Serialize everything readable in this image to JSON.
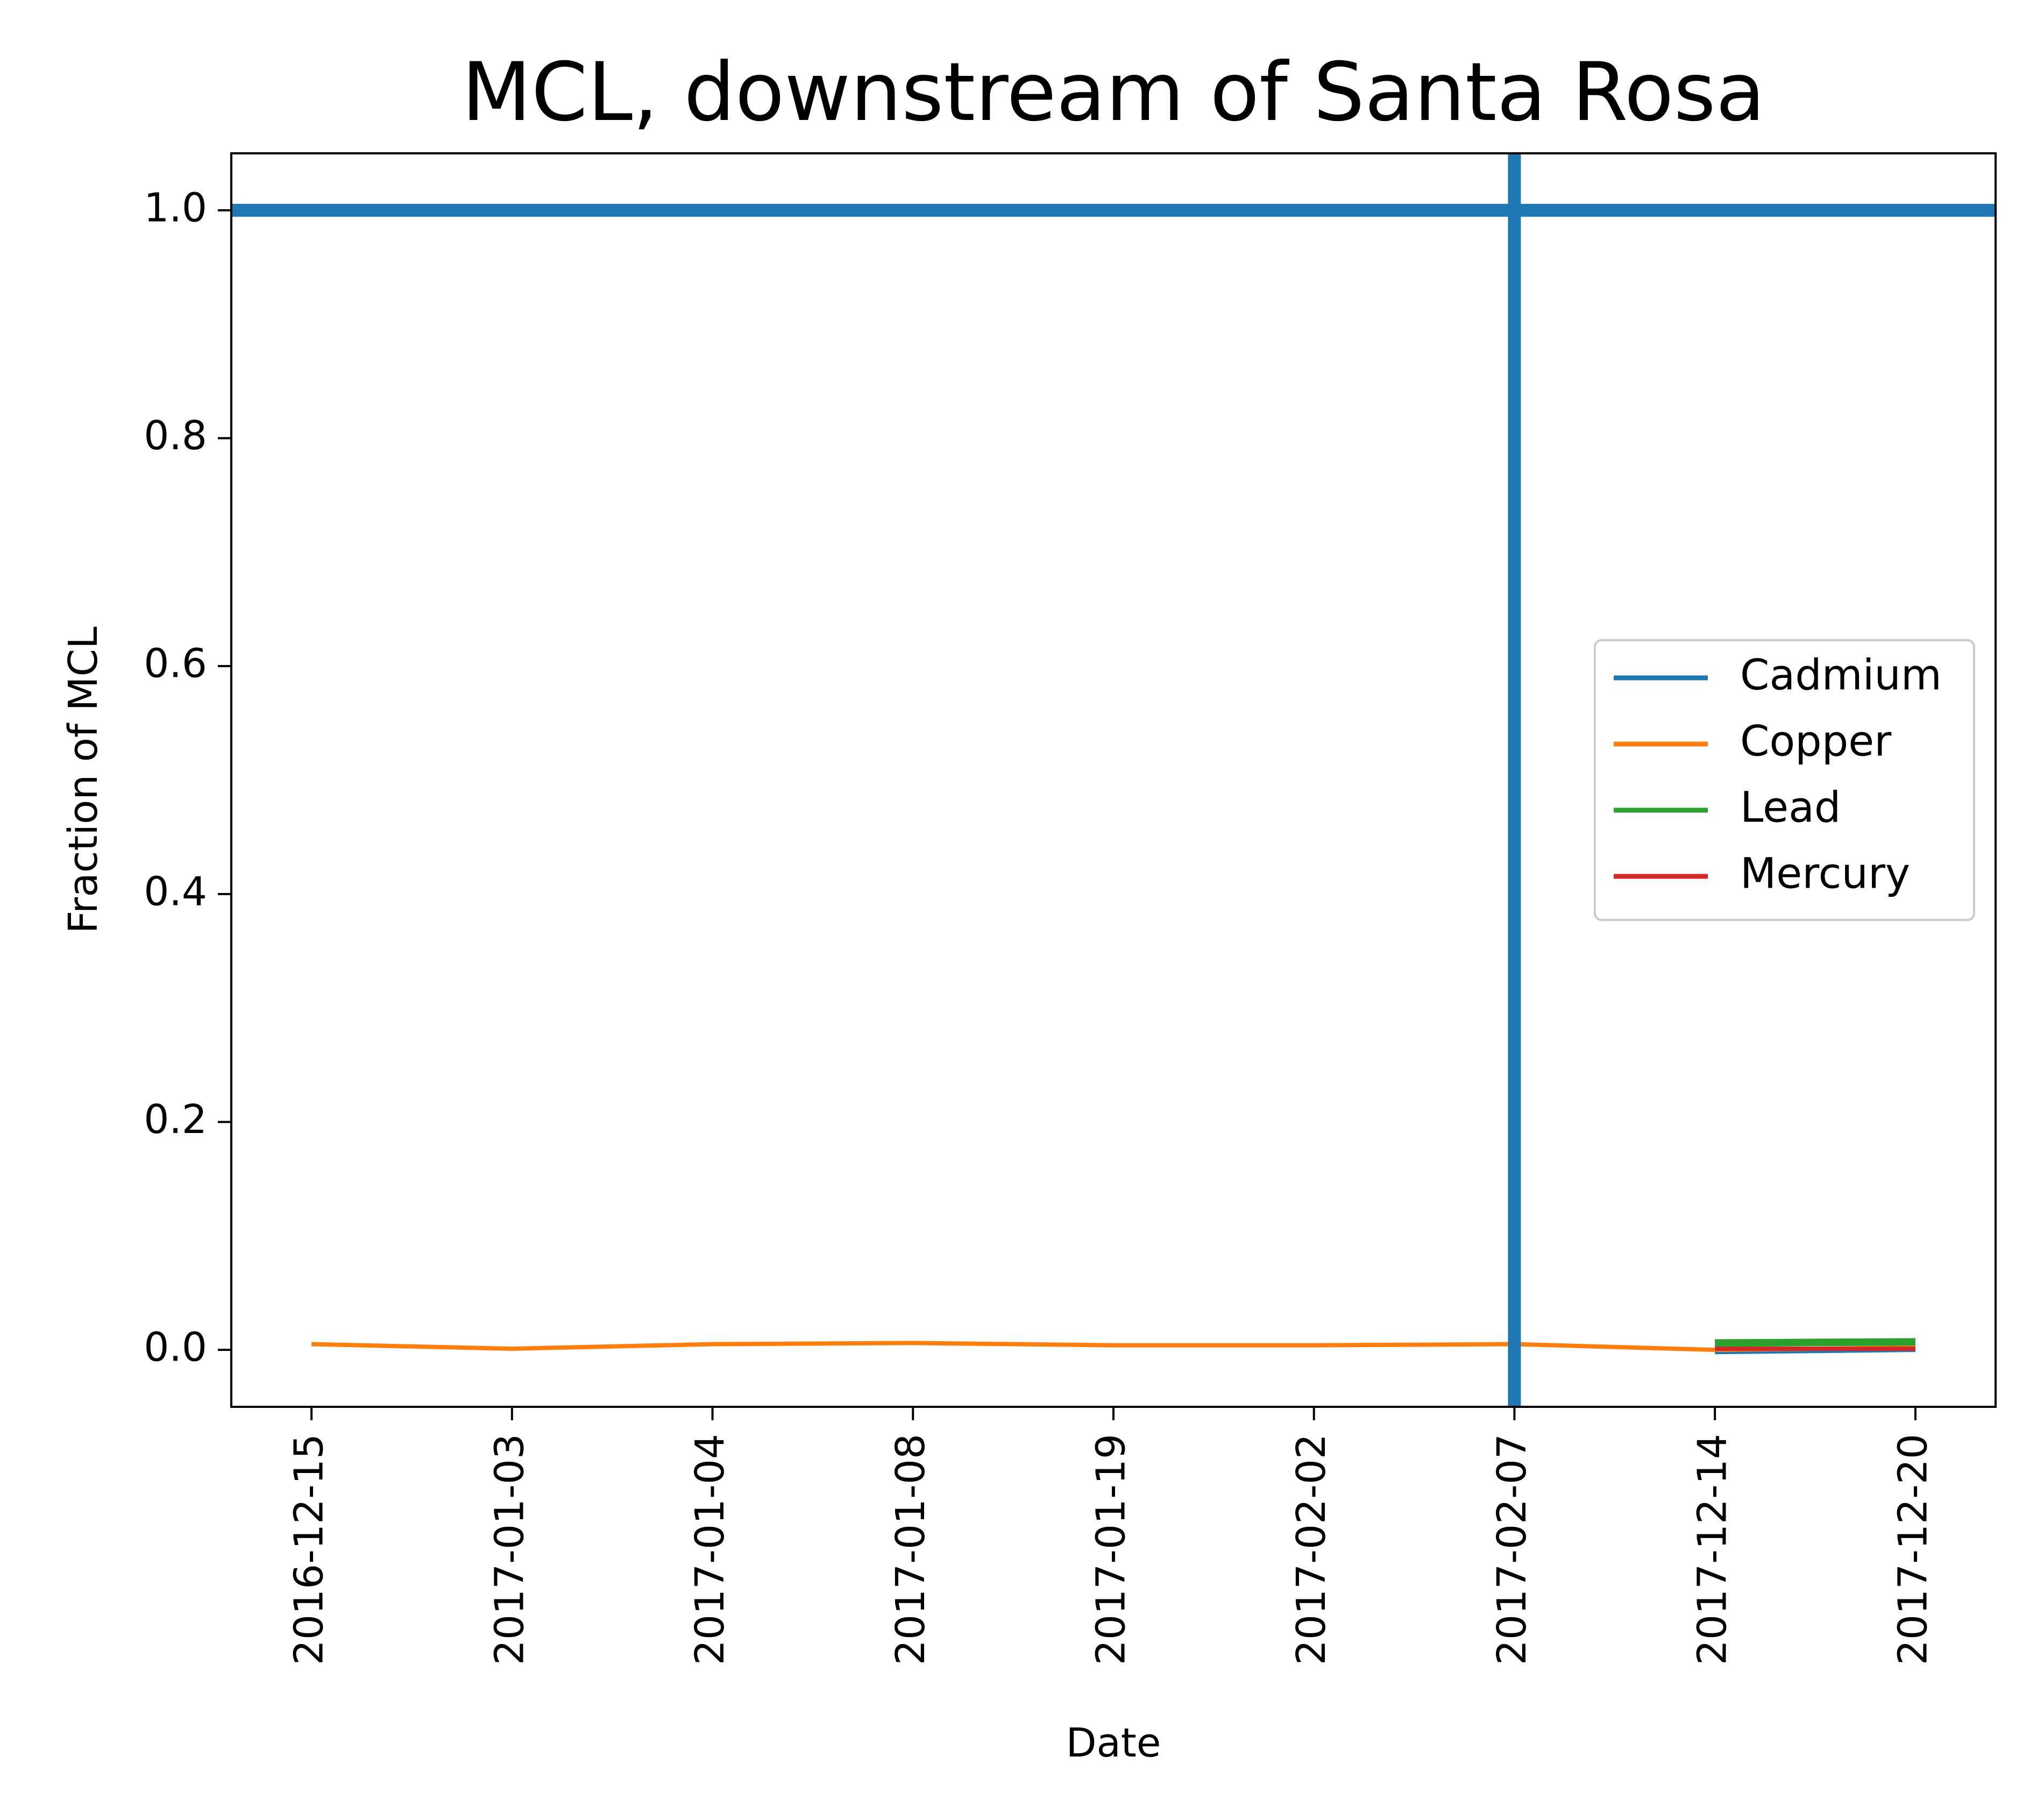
{
  "chart_data": {
    "type": "line",
    "title": "MCL, downstream of Santa Rosa",
    "xlabel": "Date",
    "ylabel": "Fraction of MCL",
    "categories": [
      "2016-12-15",
      "2017-01-03",
      "2017-01-04",
      "2017-01-08",
      "2017-01-19",
      "2017-02-02",
      "2017-02-07",
      "2017-12-14",
      "2017-12-20"
    ],
    "ylim": [
      -0.05,
      1.05
    ],
    "yticks": [
      "0.0",
      "0.2",
      "0.4",
      "0.6",
      "0.8",
      "1.0"
    ],
    "grid": false,
    "legend_position": "center-right",
    "series": [
      {
        "name": "Cadmium",
        "color": "#1f77b4",
        "values": [
          null,
          null,
          null,
          null,
          null,
          null,
          null,
          -0.002,
          0.0
        ]
      },
      {
        "name": "Copper",
        "color": "#ff7f0e",
        "values": [
          0.005,
          0.001,
          0.005,
          0.006,
          0.004,
          0.004,
          0.005,
          0.0,
          0.002
        ]
      },
      {
        "name": "Lead",
        "color": "#2ca02c",
        "values": [
          null,
          null,
          null,
          null,
          null,
          null,
          null,
          0.006,
          0.007
        ]
      },
      {
        "name": "Mercury",
        "color": "#d62728",
        "values": [
          null,
          null,
          null,
          null,
          null,
          null,
          null,
          0.001,
          0.001
        ]
      }
    ],
    "reference_lines": [
      {
        "orientation": "horizontal",
        "value": 1.0,
        "color": "#1f77b4"
      },
      {
        "orientation": "vertical",
        "value": "2017-02-07",
        "color": "#1f77b4"
      }
    ]
  }
}
